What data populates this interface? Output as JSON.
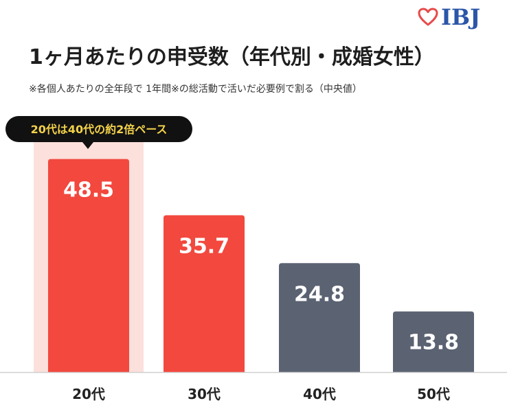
{
  "brand": {
    "name": "IBJ",
    "heart_color": "#e84a4a",
    "text_color": "#2a55a8"
  },
  "chart_data": {
    "type": "bar",
    "title": "1ヶ月あたりの申受数（年代別・成婚女性）",
    "subtitle": "※各個人あたりの全年段で 1年間※の総活動で活いだ必要例で割る（中央値）",
    "categories": [
      "20代",
      "30代",
      "40代",
      "50代"
    ],
    "values": [
      48.5,
      35.7,
      24.8,
      13.8
    ],
    "value_labels": [
      "48.5",
      "35.7",
      "24.8",
      "13.8"
    ],
    "bar_colors": [
      "#f2483e",
      "#f2483e",
      "#5b6272",
      "#5b6272"
    ],
    "highlight_color": "#fbe0dc",
    "highlight_index": 0,
    "callout": {
      "text": "20代は40代の約2倍ペース",
      "background": "#111111",
      "text_color": "#f3d24a"
    },
    "xlabel": "",
    "ylabel": "",
    "ylim": [
      0,
      55
    ],
    "grid": false,
    "legend": "none"
  }
}
